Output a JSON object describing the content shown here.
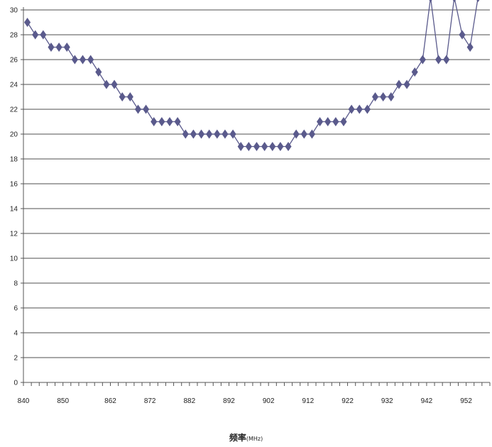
{
  "chart_data": {
    "type": "line",
    "title": "",
    "xlabel": "频率",
    "xlabel_unit": "(MHz)",
    "ylabel": "",
    "xlim": [
      840,
      958
    ],
    "ylim": [
      0,
      30
    ],
    "x_ticks": [
      840,
      850,
      862,
      872,
      882,
      892,
      902,
      912,
      922,
      932,
      942,
      952
    ],
    "y_ticks": [
      0,
      2,
      4,
      6,
      8,
      10,
      12,
      14,
      16,
      18,
      20,
      22,
      24,
      26,
      28,
      30
    ],
    "grid": true,
    "legend": "none",
    "series": [
      {
        "color": "#5a5a8c",
        "marker": "diamond",
        "points": [
          [
            841,
            29
          ],
          [
            843,
            28
          ],
          [
            845,
            28
          ],
          [
            847,
            27
          ],
          [
            849,
            27
          ],
          [
            851,
            27
          ],
          [
            853,
            26
          ],
          [
            855,
            26
          ],
          [
            857,
            26
          ],
          [
            859,
            25
          ],
          [
            861,
            24
          ],
          [
            863,
            24
          ],
          [
            865,
            23
          ],
          [
            867,
            23
          ],
          [
            869,
            22
          ],
          [
            871,
            22
          ],
          [
            873,
            21
          ],
          [
            875,
            21
          ],
          [
            877,
            21
          ],
          [
            879,
            21
          ],
          [
            881,
            20
          ],
          [
            883,
            20
          ],
          [
            885,
            20
          ],
          [
            887,
            20
          ],
          [
            889,
            20
          ],
          [
            891,
            20
          ],
          [
            893,
            20
          ],
          [
            895,
            19
          ],
          [
            897,
            19
          ],
          [
            899,
            19
          ],
          [
            901,
            19
          ],
          [
            903,
            19
          ],
          [
            905,
            19
          ],
          [
            907,
            19
          ],
          [
            909,
            20
          ],
          [
            911,
            20
          ],
          [
            913,
            20
          ],
          [
            915,
            21
          ],
          [
            917,
            21
          ],
          [
            919,
            21
          ],
          [
            921,
            21
          ],
          [
            923,
            22
          ],
          [
            925,
            22
          ],
          [
            927,
            22
          ],
          [
            929,
            23
          ],
          [
            931,
            23
          ],
          [
            933,
            23
          ],
          [
            935,
            24
          ],
          [
            937,
            24
          ],
          [
            939,
            25
          ],
          [
            941,
            26
          ],
          [
            943,
            31
          ],
          [
            945,
            26
          ],
          [
            947,
            26
          ],
          [
            949,
            31
          ],
          [
            951,
            28
          ],
          [
            953,
            27
          ],
          [
            955,
            31
          ]
        ]
      }
    ]
  }
}
